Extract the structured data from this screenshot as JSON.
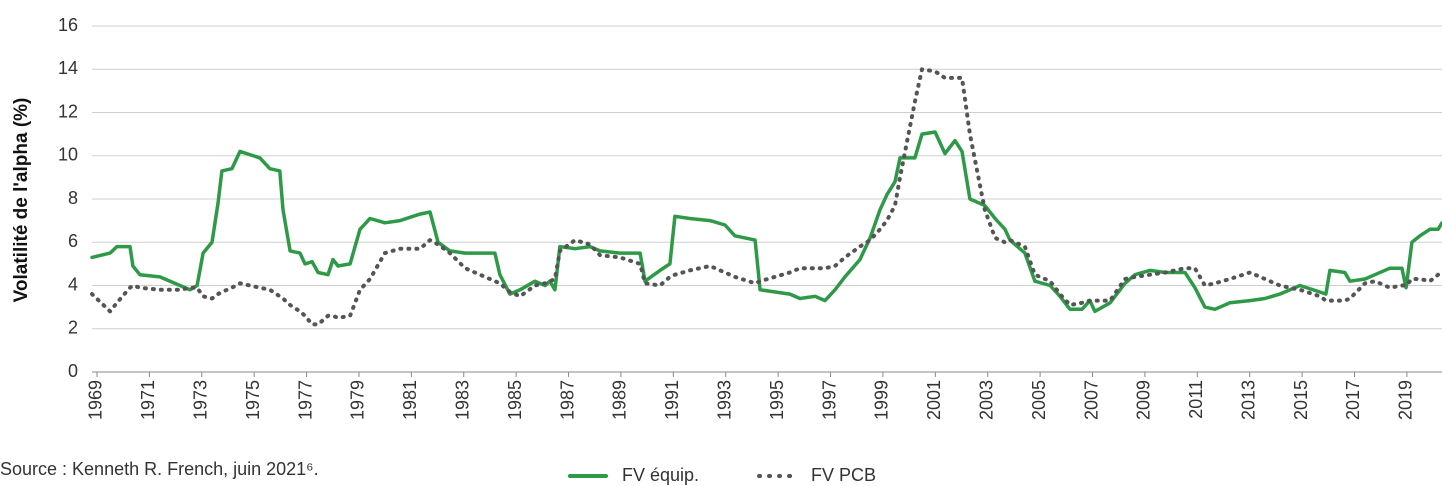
{
  "chart_data": {
    "type": "line",
    "y_label": "Volatilité de l'alpha (%)",
    "source": "Source : Kenneth R. French, juin 2021⁶.",
    "x": [
      1968.81,
      1969.5,
      1969.76,
      1970.26,
      1970.37,
      1970.64,
      1971.4,
      1972.17,
      1972.55,
      1972.82,
      1973.05,
      1973.39,
      1973.62,
      1973.77,
      1974.15,
      1974.46,
      1975.22,
      1975.6,
      1975.98,
      1976.1,
      1976.37,
      1976.75,
      1976.94,
      1977.21,
      1977.44,
      1977.82,
      1978.01,
      1978.2,
      1978.66,
      1979.04,
      1979.42,
      1979.99,
      1980.57,
      1981.33,
      1981.71,
      1982.02,
      1982.47,
      1983.05,
      1983.62,
      1984.19,
      1984.38,
      1984.76,
      1985.15,
      1985.72,
      1986.1,
      1986.29,
      1986.48,
      1986.67,
      1987.25,
      1987.82,
      1988.2,
      1988.96,
      1989.73,
      1989.92,
      1990.49,
      1990.87,
      1991.06,
      1991.63,
      1992.4,
      1992.97,
      1993.35,
      1994.12,
      1994.31,
      1995.45,
      1995.83,
      1996.41,
      1996.79,
      1997.17,
      1997.55,
      1998.12,
      1998.51,
      1998.89,
      1999.15,
      1999.46,
      1999.65,
      2000.22,
      2000.49,
      2000.99,
      2001.37,
      2001.75,
      2002.02,
      2002.32,
      2002.89,
      2003.28,
      2003.66,
      2003.85,
      2004.42,
      2004.8,
      2005.38,
      2005.76,
      2006.14,
      2006.6,
      2006.9,
      2007.09,
      2007.67,
      2008.24,
      2008.62,
      2009.19,
      2009.77,
      2010.53,
      2010.91,
      2011.29,
      2011.67,
      2012.24,
      2013.01,
      2013.58,
      2014.15,
      2014.92,
      2015.68,
      2015.91,
      2016.06,
      2016.63,
      2016.83,
      2017.4,
      2017.78,
      2018.35,
      2018.81,
      2018.97,
      2019.19,
      2019.5,
      2019.88,
      2020.19,
      2020.34
    ],
    "series": [
      {
        "name": "FV équip.",
        "color": "#2e9a48",
        "style": "solid",
        "values": [
          5.3,
          5.5,
          5.8,
          5.8,
          4.9,
          4.5,
          4.4,
          4.0,
          3.8,
          4.0,
          5.5,
          6.0,
          7.8,
          9.3,
          9.4,
          10.2,
          9.9,
          9.4,
          9.3,
          7.5,
          5.6,
          5.5,
          5.0,
          5.1,
          4.6,
          4.5,
          5.2,
          4.9,
          5.0,
          6.6,
          7.1,
          6.9,
          7.0,
          7.3,
          7.4,
          6.0,
          5.6,
          5.5,
          5.5,
          5.5,
          4.5,
          3.6,
          3.8,
          4.2,
          4.0,
          4.2,
          3.8,
          5.8,
          5.7,
          5.8,
          5.6,
          5.5,
          5.5,
          4.2,
          4.7,
          5.0,
          7.2,
          7.1,
          7.0,
          6.8,
          6.3,
          6.1,
          3.8,
          3.6,
          3.4,
          3.5,
          3.3,
          3.8,
          4.4,
          5.2,
          6.2,
          7.5,
          8.2,
          8.8,
          9.9,
          9.9,
          11.0,
          11.1,
          10.1,
          10.7,
          10.2,
          8.0,
          7.7,
          7.1,
          6.6,
          6.1,
          5.5,
          4.2,
          4.0,
          3.5,
          2.9,
          2.9,
          3.3,
          2.8,
          3.2,
          4.1,
          4.5,
          4.7,
          4.6,
          4.6,
          3.9,
          3.0,
          2.9,
          3.2,
          3.3,
          3.4,
          3.6,
          4.0,
          3.7,
          3.6,
          4.7,
          4.6,
          4.2,
          4.3,
          4.5,
          4.8,
          4.8,
          3.9,
          6.0,
          6.3,
          6.6,
          6.6,
          6.9
        ]
      },
      {
        "name": "FV PCB",
        "color": "#555555",
        "style": "dotted",
        "values": [
          3.6,
          2.8,
          3.2,
          3.9,
          4.0,
          3.9,
          3.8,
          3.8,
          3.9,
          3.9,
          3.5,
          3.4,
          3.6,
          3.7,
          3.9,
          4.1,
          3.9,
          3.8,
          3.5,
          3.4,
          3.1,
          2.8,
          2.6,
          2.2,
          2.2,
          2.6,
          2.6,
          2.5,
          2.6,
          3.8,
          4.3,
          5.5,
          5.7,
          5.7,
          6.1,
          5.9,
          5.5,
          4.8,
          4.5,
          4.2,
          4.1,
          3.7,
          3.5,
          4.0,
          4.1,
          4.2,
          4.3,
          5.6,
          6.1,
          5.9,
          5.4,
          5.3,
          5.0,
          4.1,
          4.0,
          4.4,
          4.5,
          4.7,
          4.9,
          4.6,
          4.4,
          4.1,
          4.2,
          4.6,
          4.8,
          4.8,
          4.8,
          4.9,
          5.3,
          5.8,
          6.1,
          6.6,
          7.0,
          7.7,
          9.0,
          12.5,
          14.0,
          13.9,
          13.6,
          13.6,
          13.6,
          11.0,
          7.5,
          6.2,
          6.0,
          6.1,
          5.8,
          4.5,
          4.2,
          3.6,
          3.1,
          3.2,
          3.3,
          3.3,
          3.3,
          4.3,
          4.4,
          4.5,
          4.6,
          4.8,
          4.8,
          4.0,
          4.1,
          4.3,
          4.6,
          4.3,
          4.0,
          3.8,
          3.5,
          3.3,
          3.3,
          3.3,
          3.4,
          4.1,
          4.2,
          3.9,
          4.0,
          4.0,
          4.3,
          4.3,
          4.2,
          4.5,
          4.7
        ]
      }
    ],
    "xlim": [
      1968.81,
      2020.34
    ],
    "xticks": [
      1969,
      1971,
      1973,
      1975,
      1977,
      1979,
      1981,
      1983,
      1985,
      1987,
      1989,
      1991,
      1993,
      1995,
      1997,
      1999,
      2001,
      2003,
      2005,
      2007,
      2009,
      2011,
      2013,
      2015,
      2017,
      2019
    ],
    "ylim": [
      0,
      16
    ],
    "yticks": [
      0,
      2,
      4,
      6,
      8,
      10,
      12,
      14,
      16
    ],
    "grid": true,
    "legend": "bottom"
  }
}
